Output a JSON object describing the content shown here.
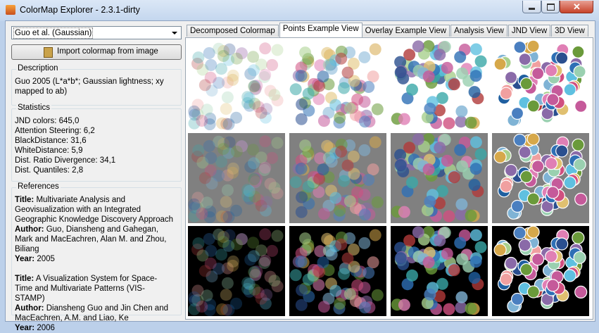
{
  "window": {
    "title": "ColorMap Explorer - 2.3.1-dirty"
  },
  "sidebar": {
    "colormap_select": "Guo et al. (Gaussian)",
    "import_button": "Import colormap from image",
    "description": {
      "label": "Description",
      "text": "Guo 2005 (L*a*b*; Gaussian lightness; xy mapped to ab)"
    },
    "statistics": {
      "label": "Statistics",
      "items": [
        "JND colors: 645,0",
        "Attention Steering: 6,2",
        "BlackDistance: 31,6",
        "WhiteDistance: 5,9",
        "Dist. Ratio Divergence: 34,1",
        "Dist. Quantiles: 2,8"
      ]
    },
    "references": {
      "label": "References",
      "entries": [
        {
          "title_label": "Title:",
          "title": "Multivariate Analysis and Geovisualization with an Integrated Geographic Knowledge Discovery Approach",
          "author_label": "Author:",
          "author": "Guo, Diansheng and Gahegan, Mark and MacEachren, Alan M. and Zhou, Biliang",
          "year_label": "Year:",
          "year": "2005"
        },
        {
          "title_label": "Title:",
          "title": "A Visualization System for Space-Time and Multivariate Patterns (VIS-STAMP)",
          "author_label": "Author:",
          "author": "Diansheng Guo and Jin Chen and MacEachren, A.M. and Liao, Ke",
          "year_label": "Year:",
          "year": "2006"
        }
      ]
    }
  },
  "tabs": {
    "items": [
      "Decomposed Colormap",
      "Points Example View",
      "Overlay Example View",
      "Analysis View",
      "JND View",
      "3D View"
    ],
    "selected": 1
  }
}
